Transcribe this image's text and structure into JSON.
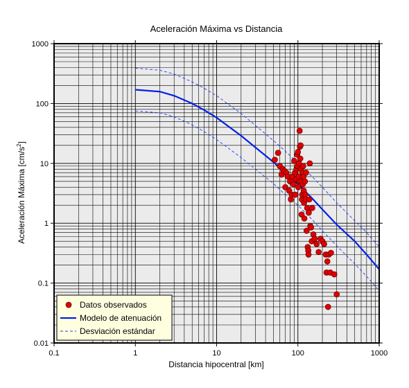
{
  "chart_data": {
    "type": "scatter",
    "title": "Aceleración Máxima vs Distancia",
    "xlabel": "Distancia hipocentral [km]",
    "ylabel": "Aceleración Máxima [cm/s",
    "ylabel_sup": "2",
    "ylabel_end": "]",
    "xscale": "log",
    "yscale": "log",
    "xlim": [
      0.1,
      1000
    ],
    "ylim": [
      0.01,
      1000
    ],
    "x_ticks": [
      "0.1",
      "1",
      "10",
      "100",
      "1000"
    ],
    "y_ticks": [
      "0.01",
      "0.1",
      "1",
      "10",
      "100",
      "1000"
    ],
    "grid": true,
    "legend_position": "bottom-left",
    "colors": {
      "plot_background": "#ebebeb",
      "points": "#e00000",
      "model": "#0020e8",
      "deviation": "#1a3cff",
      "legend_background": "#ffffe0"
    },
    "series": [
      {
        "name": "Datos observados",
        "kind": "points",
        "points": [
          [
            52,
            11.5
          ],
          [
            57,
            15
          ],
          [
            60,
            9
          ],
          [
            63,
            6.5
          ],
          [
            65,
            8
          ],
          [
            68,
            7.5
          ],
          [
            70,
            4
          ],
          [
            72,
            7
          ],
          [
            75,
            6
          ],
          [
            78,
            3.5
          ],
          [
            80,
            5
          ],
          [
            82,
            2.5
          ],
          [
            84,
            3
          ],
          [
            85,
            6
          ],
          [
            87,
            5
          ],
          [
            88,
            4.5
          ],
          [
            90,
            11
          ],
          [
            92,
            7
          ],
          [
            93,
            3
          ],
          [
            95,
            5.5
          ],
          [
            96,
            8
          ],
          [
            98,
            14
          ],
          [
            99,
            9
          ],
          [
            100,
            15.5
          ],
          [
            101,
            4
          ],
          [
            102,
            6
          ],
          [
            103,
            10
          ],
          [
            104,
            5
          ],
          [
            105,
            35
          ],
          [
            106,
            19
          ],
          [
            107,
            12
          ],
          [
            108,
            20
          ],
          [
            109,
            8
          ],
          [
            110,
            5
          ],
          [
            111,
            1.4
          ],
          [
            112,
            2.5
          ],
          [
            113,
            3
          ],
          [
            114,
            7
          ],
          [
            115,
            4.5
          ],
          [
            116,
            9
          ],
          [
            117,
            6
          ],
          [
            118,
            3.5
          ],
          [
            119,
            2.2
          ],
          [
            120,
            1.2
          ],
          [
            122,
            5
          ],
          [
            123,
            3
          ],
          [
            125,
            2.5
          ],
          [
            126,
            7
          ],
          [
            128,
            0.75
          ],
          [
            130,
            1.8
          ],
          [
            132,
            0.4
          ],
          [
            134,
            0.35
          ],
          [
            135,
            0.3
          ],
          [
            136,
            1.5
          ],
          [
            138,
            2.5
          ],
          [
            140,
            10
          ],
          [
            142,
            0.9
          ],
          [
            145,
            0.85
          ],
          [
            148,
            0.5
          ],
          [
            150,
            1.8
          ],
          [
            155,
            0.65
          ],
          [
            160,
            0.55
          ],
          [
            170,
            0.45
          ],
          [
            180,
            0.33
          ],
          [
            190,
            0.55
          ],
          [
            200,
            0.5
          ],
          [
            210,
            0.45
          ],
          [
            220,
            0.3
          ],
          [
            225,
            0.15
          ],
          [
            230,
            0.23
          ],
          [
            235,
            0.04
          ],
          [
            240,
            0.3
          ],
          [
            250,
            0.15
          ],
          [
            255,
            0.32
          ],
          [
            280,
            0.14
          ],
          [
            300,
            0.065
          ]
        ]
      },
      {
        "name": "Modelo de atenuación",
        "kind": "line",
        "points": [
          [
            1,
            170
          ],
          [
            2,
            158
          ],
          [
            3,
            135
          ],
          [
            5,
            100
          ],
          [
            7,
            78
          ],
          [
            10,
            58
          ],
          [
            20,
            29
          ],
          [
            30,
            18.5
          ],
          [
            50,
            10.5
          ],
          [
            70,
            7
          ],
          [
            100,
            4.5
          ],
          [
            150,
            2.6
          ],
          [
            200,
            1.7
          ],
          [
            300,
            0.95
          ],
          [
            500,
            0.5
          ],
          [
            700,
            0.3
          ],
          [
            1000,
            0.17
          ]
        ]
      },
      {
        "name": "Desviación estándar",
        "kind": "dashed",
        "points": [
          [
            1,
            390
          ],
          [
            2,
            360
          ],
          [
            3,
            310
          ],
          [
            5,
            230
          ],
          [
            7,
            180
          ],
          [
            10,
            135
          ],
          [
            20,
            68
          ],
          [
            30,
            43
          ],
          [
            50,
            24
          ],
          [
            70,
            16
          ],
          [
            100,
            10
          ],
          [
            150,
            6
          ],
          [
            200,
            4
          ],
          [
            300,
            2.2
          ],
          [
            500,
            1.1
          ],
          [
            700,
            0.7
          ],
          [
            1000,
            0.4
          ]
        ],
        "lower": [
          [
            1,
            75
          ],
          [
            2,
            70
          ],
          [
            3,
            60
          ],
          [
            5,
            44
          ],
          [
            7,
            34
          ],
          [
            10,
            25
          ],
          [
            20,
            12.5
          ],
          [
            30,
            8
          ],
          [
            50,
            4.6
          ],
          [
            70,
            3
          ],
          [
            100,
            2
          ],
          [
            150,
            1.15
          ],
          [
            200,
            0.75
          ],
          [
            300,
            0.42
          ],
          [
            500,
            0.21
          ],
          [
            700,
            0.13
          ],
          [
            1000,
            0.075
          ]
        ]
      }
    ]
  }
}
